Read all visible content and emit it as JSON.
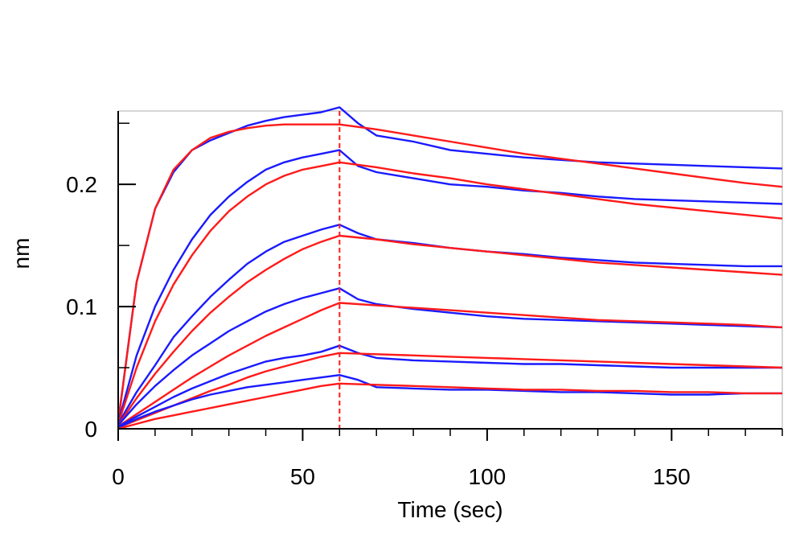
{
  "chart_data": {
    "type": "line",
    "title": "",
    "xlabel": "Time (sec)",
    "ylabel": "nm",
    "xlim": [
      0,
      180
    ],
    "ylim": [
      0,
      0.26
    ],
    "x_ticks": [
      0,
      50,
      100,
      150
    ],
    "x_tick_labels": [
      "0",
      "50",
      "100",
      "150"
    ],
    "x_minor_step": 10,
    "y_ticks": [
      0,
      0.1,
      0.2
    ],
    "y_tick_labels": [
      "0",
      "0.1",
      "0.2"
    ],
    "y_minor_step": 0.05,
    "grid": false,
    "legend": "none",
    "colors": {
      "measured": "#1a1aff",
      "fit": "#ff1a1a",
      "marker": "#ff1a1a"
    },
    "vertical_marker_x": 60,
    "series": [
      {
        "type": "measured",
        "x": [
          0,
          5,
          10,
          15,
          20,
          25,
          30,
          35,
          40,
          45,
          50,
          55,
          60,
          65,
          70,
          80,
          90,
          100,
          110,
          120,
          130,
          140,
          150,
          160,
          170,
          180
        ],
        "values": [
          0.006,
          0.12,
          0.18,
          0.21,
          0.228,
          0.236,
          0.242,
          0.248,
          0.252,
          0.255,
          0.257,
          0.259,
          0.263,
          0.25,
          0.24,
          0.235,
          0.228,
          0.225,
          0.222,
          0.22,
          0.218,
          0.217,
          0.216,
          0.215,
          0.214,
          0.213
        ]
      },
      {
        "type": "fit",
        "x": [
          0,
          5,
          10,
          15,
          20,
          25,
          30,
          35,
          40,
          45,
          50,
          55,
          60,
          70,
          80,
          90,
          100,
          110,
          120,
          130,
          140,
          150,
          160,
          170,
          180
        ],
        "values": [
          0.005,
          0.12,
          0.18,
          0.212,
          0.228,
          0.238,
          0.243,
          0.246,
          0.248,
          0.249,
          0.249,
          0.249,
          0.249,
          0.245,
          0.24,
          0.235,
          0.23,
          0.225,
          0.221,
          0.217,
          0.213,
          0.209,
          0.205,
          0.201,
          0.198
        ]
      },
      {
        "type": "measured",
        "x": [
          0,
          5,
          10,
          15,
          20,
          25,
          30,
          35,
          40,
          45,
          50,
          55,
          60,
          65,
          70,
          80,
          90,
          100,
          110,
          120,
          130,
          140,
          150,
          160,
          170,
          180
        ],
        "values": [
          0.005,
          0.06,
          0.1,
          0.13,
          0.155,
          0.175,
          0.19,
          0.202,
          0.212,
          0.218,
          0.222,
          0.225,
          0.228,
          0.215,
          0.21,
          0.205,
          0.2,
          0.198,
          0.195,
          0.193,
          0.19,
          0.188,
          0.187,
          0.186,
          0.185,
          0.184
        ]
      },
      {
        "type": "fit",
        "x": [
          0,
          5,
          10,
          15,
          20,
          25,
          30,
          35,
          40,
          45,
          50,
          55,
          60,
          70,
          80,
          90,
          100,
          110,
          120,
          130,
          140,
          150,
          160,
          170,
          180
        ],
        "values": [
          0.004,
          0.05,
          0.088,
          0.118,
          0.142,
          0.162,
          0.178,
          0.19,
          0.2,
          0.207,
          0.212,
          0.215,
          0.218,
          0.214,
          0.209,
          0.205,
          0.2,
          0.196,
          0.192,
          0.188,
          0.184,
          0.181,
          0.178,
          0.175,
          0.172
        ]
      },
      {
        "type": "measured",
        "x": [
          0,
          5,
          10,
          15,
          20,
          25,
          30,
          35,
          40,
          45,
          50,
          55,
          60,
          65,
          70,
          80,
          90,
          100,
          110,
          120,
          130,
          140,
          150,
          160,
          170,
          180
        ],
        "values": [
          0.004,
          0.03,
          0.052,
          0.075,
          0.092,
          0.108,
          0.122,
          0.135,
          0.145,
          0.153,
          0.158,
          0.163,
          0.167,
          0.16,
          0.155,
          0.152,
          0.148,
          0.145,
          0.143,
          0.14,
          0.138,
          0.136,
          0.135,
          0.134,
          0.133,
          0.133
        ]
      },
      {
        "type": "fit",
        "x": [
          0,
          5,
          10,
          15,
          20,
          25,
          30,
          35,
          40,
          45,
          50,
          55,
          60,
          70,
          80,
          90,
          100,
          110,
          120,
          130,
          140,
          150,
          160,
          170,
          180
        ],
        "values": [
          0.003,
          0.025,
          0.045,
          0.063,
          0.08,
          0.095,
          0.108,
          0.12,
          0.13,
          0.139,
          0.147,
          0.153,
          0.158,
          0.155,
          0.151,
          0.148,
          0.145,
          0.142,
          0.139,
          0.136,
          0.134,
          0.132,
          0.13,
          0.128,
          0.126
        ]
      },
      {
        "type": "measured",
        "x": [
          0,
          5,
          10,
          15,
          20,
          25,
          30,
          35,
          40,
          45,
          50,
          55,
          60,
          65,
          70,
          80,
          90,
          100,
          110,
          120,
          130,
          140,
          150,
          160,
          170,
          180
        ],
        "values": [
          0.003,
          0.02,
          0.035,
          0.048,
          0.06,
          0.07,
          0.08,
          0.088,
          0.096,
          0.102,
          0.107,
          0.111,
          0.115,
          0.106,
          0.102,
          0.098,
          0.095,
          0.092,
          0.09,
          0.089,
          0.088,
          0.087,
          0.086,
          0.085,
          0.084,
          0.083
        ]
      },
      {
        "type": "fit",
        "x": [
          0,
          5,
          10,
          15,
          20,
          25,
          30,
          35,
          40,
          45,
          50,
          55,
          60,
          70,
          80,
          90,
          100,
          110,
          120,
          130,
          140,
          150,
          160,
          170,
          180
        ],
        "values": [
          0.002,
          0.012,
          0.022,
          0.032,
          0.042,
          0.051,
          0.06,
          0.068,
          0.076,
          0.083,
          0.09,
          0.097,
          0.103,
          0.101,
          0.099,
          0.097,
          0.095,
          0.093,
          0.091,
          0.089,
          0.088,
          0.087,
          0.086,
          0.085,
          0.083
        ]
      },
      {
        "type": "measured",
        "x": [
          0,
          5,
          10,
          15,
          20,
          25,
          30,
          35,
          40,
          45,
          50,
          55,
          60,
          65,
          70,
          80,
          90,
          100,
          110,
          120,
          130,
          140,
          150,
          160,
          170,
          180
        ],
        "values": [
          0.002,
          0.01,
          0.018,
          0.026,
          0.033,
          0.039,
          0.045,
          0.05,
          0.055,
          0.058,
          0.06,
          0.063,
          0.068,
          0.062,
          0.058,
          0.056,
          0.055,
          0.054,
          0.053,
          0.053,
          0.052,
          0.051,
          0.05,
          0.05,
          0.05,
          0.05
        ]
      },
      {
        "type": "fit",
        "x": [
          0,
          5,
          10,
          15,
          20,
          25,
          30,
          35,
          40,
          45,
          50,
          55,
          60,
          70,
          80,
          90,
          100,
          110,
          120,
          130,
          140,
          150,
          160,
          170,
          180
        ],
        "values": [
          0.001,
          0.007,
          0.013,
          0.019,
          0.025,
          0.031,
          0.036,
          0.042,
          0.047,
          0.051,
          0.055,
          0.059,
          0.062,
          0.061,
          0.06,
          0.059,
          0.058,
          0.057,
          0.056,
          0.055,
          0.054,
          0.053,
          0.052,
          0.051,
          0.05
        ]
      },
      {
        "type": "measured",
        "x": [
          0,
          5,
          10,
          15,
          20,
          25,
          30,
          35,
          40,
          45,
          50,
          55,
          60,
          65,
          70,
          80,
          90,
          100,
          110,
          120,
          130,
          140,
          150,
          160,
          170,
          180
        ],
        "values": [
          0.001,
          0.008,
          0.014,
          0.019,
          0.024,
          0.028,
          0.031,
          0.034,
          0.036,
          0.038,
          0.04,
          0.042,
          0.044,
          0.04,
          0.034,
          0.033,
          0.032,
          0.032,
          0.031,
          0.03,
          0.03,
          0.029,
          0.028,
          0.028,
          0.029,
          0.029
        ]
      },
      {
        "type": "fit",
        "x": [
          0,
          5,
          10,
          15,
          20,
          25,
          30,
          35,
          40,
          45,
          50,
          55,
          60,
          70,
          80,
          90,
          100,
          110,
          120,
          130,
          140,
          150,
          160,
          170,
          180
        ],
        "values": [
          0.0,
          0.004,
          0.008,
          0.011,
          0.014,
          0.017,
          0.02,
          0.023,
          0.026,
          0.029,
          0.032,
          0.035,
          0.037,
          0.036,
          0.035,
          0.034,
          0.033,
          0.032,
          0.032,
          0.031,
          0.031,
          0.03,
          0.03,
          0.029,
          0.029
        ]
      }
    ]
  }
}
